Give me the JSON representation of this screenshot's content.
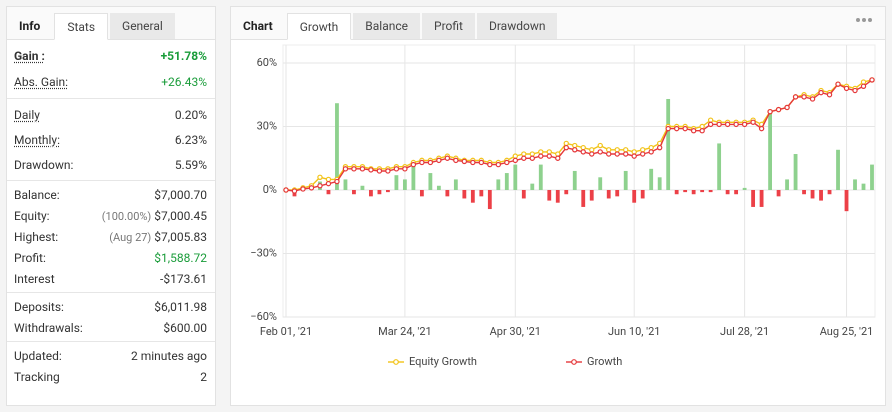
{
  "stats_panel": {
    "tabs": [
      "Info",
      "Stats",
      "General"
    ],
    "active_tab": 1,
    "groups": [
      {
        "rows": [
          {
            "label": "Gain :",
            "value": "+51.78%",
            "color": "#1a9c3a",
            "bold": true,
            "underline": true
          },
          {
            "label": "Abs. Gain:",
            "value": "+26.43%",
            "color": "#1a9c3a",
            "underline": true
          }
        ]
      },
      {
        "rows": [
          {
            "label": "Daily",
            "value": "0.20%",
            "underline": true
          },
          {
            "label": "Monthly:",
            "value": "6.23%",
            "underline": true
          },
          {
            "label": "Drawdown:",
            "value": "5.59%"
          }
        ]
      },
      {
        "rows": [
          {
            "label": "Balance:",
            "value": "$7,000.70"
          },
          {
            "label": "Equity:",
            "note": "(100.00%)",
            "value": "$7,000.45"
          },
          {
            "label": "Highest:",
            "note": "(Aug 27)",
            "value": "$7,005.83"
          },
          {
            "label": "Profit:",
            "value": "$1,588.72",
            "color": "#1a9c3a"
          },
          {
            "label": "Interest",
            "value": "-$173.61"
          }
        ]
      },
      {
        "rows": [
          {
            "label": "Deposits:",
            "value": "$6,011.98"
          },
          {
            "label": "Withdrawals:",
            "value": "$600.00"
          }
        ]
      },
      {
        "rows": [
          {
            "label": "Updated:",
            "value": "2 minutes ago"
          },
          {
            "label": "Tracking",
            "value": "2"
          }
        ]
      }
    ]
  },
  "chart_panel": {
    "tabs": [
      "Chart",
      "Growth",
      "Balance",
      "Profit",
      "Drawdown"
    ],
    "active_tab": 1
  },
  "chart_data": {
    "type": "line",
    "categories": [
      "Feb 01, '21",
      null,
      null,
      null,
      null,
      null,
      null,
      null,
      null,
      null,
      null,
      null,
      null,
      null,
      "Mar 24, '21",
      null,
      null,
      null,
      null,
      null,
      null,
      null,
      null,
      null,
      null,
      null,
      null,
      "Apr 30, '21",
      null,
      null,
      null,
      null,
      null,
      null,
      null,
      null,
      null,
      null,
      null,
      null,
      null,
      "Jun 10, '21",
      null,
      null,
      null,
      null,
      null,
      null,
      null,
      null,
      null,
      null,
      null,
      null,
      "Jul 28, '21",
      null,
      null,
      null,
      null,
      null,
      null,
      null,
      null,
      null,
      null,
      null,
      "Aug 25, '21",
      null,
      null,
      null
    ],
    "ylim": [
      -60,
      60
    ],
    "yticks": [
      {
        "value": 60,
        "label": "60%"
      },
      {
        "value": 30,
        "label": "30%"
      },
      {
        "value": 0,
        "label": "0%"
      },
      {
        "value": -30,
        "label": "−30%"
      },
      {
        "value": -60,
        "label": "−60%"
      }
    ],
    "grid": true,
    "legend": "bottom",
    "bars": {
      "type": "bar",
      "color_positive": "#8ed18e",
      "color_negative": "#ec4047",
      "values": [
        -1,
        -3,
        2,
        3,
        4,
        -2,
        41,
        5,
        -2,
        2,
        -3,
        -2,
        -1,
        7,
        5,
        12,
        -3,
        8,
        2,
        -3,
        5,
        -4,
        -6,
        -3,
        -9,
        5,
        8,
        12,
        -4,
        3,
        12,
        -5,
        -6,
        -2,
        9,
        -8,
        -5,
        6,
        -4,
        -3,
        9,
        -6,
        -4,
        10,
        6,
        43,
        -2,
        -1,
        -2,
        -1,
        -1,
        22,
        -2,
        -2,
        1,
        -8,
        -8,
        37,
        -3,
        5,
        17,
        -2,
        -4,
        -5,
        -2,
        19,
        -10,
        5,
        3,
        12
      ]
    },
    "series": [
      {
        "name": "Equity Growth",
        "color": "#f2c318",
        "values": [
          0,
          0,
          1,
          2,
          6,
          5,
          5,
          11,
          11,
          11,
          10,
          10,
          10,
          11,
          11,
          13,
          14,
          14,
          15,
          16,
          15,
          14,
          14,
          14,
          13,
          13,
          14,
          16,
          17,
          17,
          18,
          18,
          17,
          22,
          21,
          20,
          19,
          21,
          19,
          19,
          19,
          18,
          19,
          20,
          22,
          30,
          30,
          30,
          29,
          30,
          33,
          32,
          32,
          32,
          32,
          33,
          31,
          37,
          38,
          39,
          44,
          45,
          44,
          47,
          46,
          50,
          49,
          48,
          51,
          52
        ]
      },
      {
        "name": "Growth",
        "color": "#e5383b",
        "values": [
          0,
          -0.5,
          0.5,
          1,
          2,
          3,
          4,
          10,
          10,
          10,
          9.5,
          9,
          9,
          10,
          10,
          12,
          13,
          13,
          14,
          15,
          14,
          13.5,
          13,
          13,
          12,
          12,
          13,
          14,
          15,
          15,
          16,
          16,
          15,
          20,
          19,
          18,
          17,
          18,
          17,
          17,
          17,
          16,
          17,
          18,
          20,
          29,
          29,
          29,
          28,
          28,
          31,
          31,
          31,
          31,
          31,
          32,
          29,
          37,
          38,
          39,
          44,
          44,
          43,
          46,
          45,
          50,
          48,
          47,
          49,
          52
        ]
      }
    ]
  }
}
